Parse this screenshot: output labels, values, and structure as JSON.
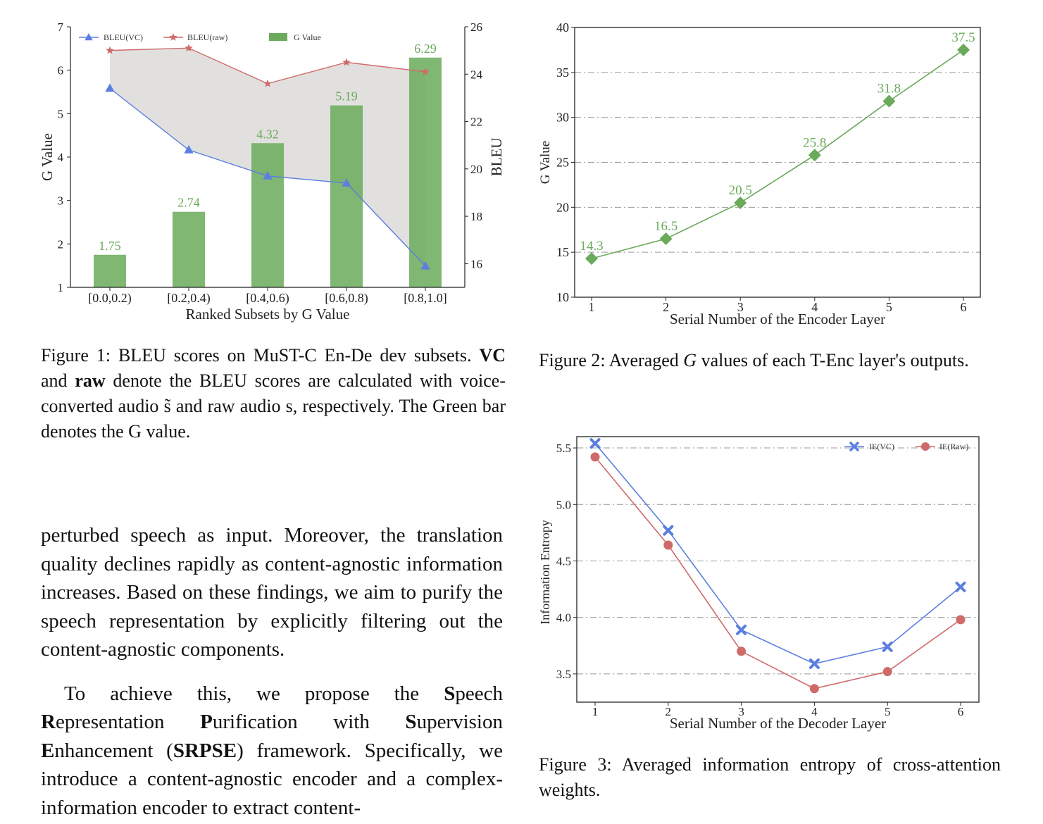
{
  "figure1": {
    "chart_data": {
      "type": "bar",
      "categories": [
        "[0.0,0.2)",
        "[0.2,0.4)",
        "[0.4,0.6)",
        "[0.6,0.8)",
        "[0.8,1.0]"
      ],
      "xlabel": "Ranked Subsets by G Value",
      "ylabel_left": "G Value",
      "ylabel_right": "BLEU",
      "ylim_left": [
        1,
        7
      ],
      "yticks_left": [
        1,
        2,
        3,
        4,
        5,
        6,
        7
      ],
      "ylim_right": [
        15,
        26
      ],
      "yticks_right": [
        16,
        18,
        20,
        22,
        24,
        26
      ],
      "legend_position": "top",
      "series": [
        {
          "name": "BLEU(VC)",
          "type": "line",
          "axis": "right",
          "marker": "triangle",
          "color": "#5b7fe0",
          "values": [
            23.4,
            20.8,
            19.7,
            19.4,
            15.9
          ]
        },
        {
          "name": "BLEU(raw)",
          "type": "line",
          "axis": "right",
          "marker": "star",
          "color": "#cf6a6a",
          "values": [
            25.0,
            25.1,
            23.6,
            24.5,
            24.1
          ]
        },
        {
          "name": "G Value",
          "type": "bar",
          "axis": "left",
          "color": "#6aaa5a",
          "values": [
            1.75,
            2.74,
            4.32,
            5.19,
            6.29
          ],
          "labels": [
            "1.75",
            "2.74",
            "4.32",
            "5.19",
            "6.29"
          ]
        }
      ]
    },
    "caption": {
      "lead": "Figure 1: BLEU scores on MuST-C En-De dev subsets.",
      "vc": "VC",
      "and": " and ",
      "raw": "raw",
      "rest": " denote the BLEU scores are calculated with voice-converted audio s̃ and raw audio s, respectively. The Green bar denotes the G value."
    }
  },
  "figure2": {
    "chart_data": {
      "type": "line",
      "x": [
        1,
        2,
        3,
        4,
        5,
        6
      ],
      "xlabel": "Serial Number of  the Encoder Layer",
      "ylabel": "G Value",
      "ylim": [
        10,
        40
      ],
      "yticks": [
        10,
        15,
        20,
        25,
        30,
        35,
        40
      ],
      "grid": true,
      "series": [
        {
          "values": [
            14.3,
            16.5,
            20.5,
            25.8,
            31.8,
            37.5
          ],
          "labels": [
            "14.3",
            "16.5",
            "20.5",
            "25.8",
            "31.8",
            "37.5"
          ],
          "marker": "diamond",
          "color": "#6aaa5a"
        }
      ]
    },
    "caption": {
      "prefix": "Figure 2:  Averaged ",
      "g": "G",
      "suffix": " values of each T-Enc layer's outputs."
    }
  },
  "figure3": {
    "chart_data": {
      "type": "line",
      "x": [
        1,
        2,
        3,
        4,
        5,
        6
      ],
      "xlabel": "Serial Number of the Decoder Layer",
      "ylabel": "Information Entropy",
      "ylim": [
        3.25,
        5.6
      ],
      "yticks": [
        3.5,
        4.0,
        4.5,
        5.0,
        5.5
      ],
      "ytick_labels": [
        "3.5",
        "4.0",
        "4.5",
        "5.0",
        "5.5"
      ],
      "grid": true,
      "legend_position": "top-right",
      "series": [
        {
          "name": "IE(VC)",
          "values": [
            5.54,
            4.77,
            3.89,
            3.59,
            3.74,
            4.27
          ],
          "marker": "x",
          "color": "#5b7fe0"
        },
        {
          "name": "IE(Raw)",
          "values": [
            5.42,
            4.64,
            3.7,
            3.37,
            3.52,
            3.98
          ],
          "marker": "circle",
          "color": "#cf6a6a"
        }
      ]
    },
    "caption": "Figure 3:  Averaged information entropy of cross-attention weights."
  },
  "body": {
    "para1": "perturbed speech as input. Moreover, the translation quality declines rapidly as content-agnostic information increases. Based on these findings, we aim to purify the speech representation by explicitly filtering out the content-agnostic components.",
    "para2": {
      "t1": "To achieve this, we propose the ",
      "s1": "S",
      "t2": "peech ",
      "r1": "R",
      "t3": "epresentation ",
      "p1": "P",
      "t4": "urification with ",
      "s2": "S",
      "t5": "upervision ",
      "e1": "E",
      "t6": "nhancement (",
      "abbr": "SRPSE",
      "t7": ") framework. Specifically, we introduce a content-agnostic encoder and a complex-information encoder to extract content-"
    }
  }
}
